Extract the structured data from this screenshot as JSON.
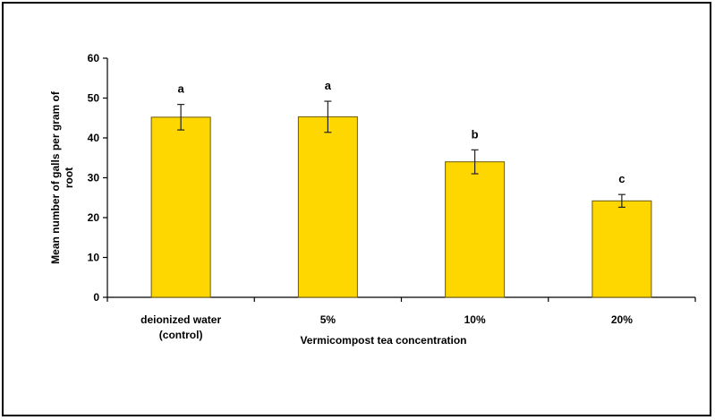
{
  "chart_data": {
    "type": "bar",
    "title": "",
    "xlabel": "Vermicompost tea concentration",
    "ylabel_lines": [
      "Mean number of galls per gram of",
      "root"
    ],
    "ylim": [
      0,
      60
    ],
    "yticks": [
      0,
      10,
      20,
      30,
      40,
      50,
      60
    ],
    "grid": false,
    "legend": "none",
    "bar_color": "#FFD700",
    "categories": [
      {
        "lines": [
          "deionized water",
          "(control)"
        ]
      },
      {
        "lines": [
          "5%"
        ]
      },
      {
        "lines": [
          "10%"
        ]
      },
      {
        "lines": [
          "20%"
        ]
      }
    ],
    "values": [
      45.2,
      45.3,
      34.0,
      24.2
    ],
    "errors": [
      3.2,
      3.9,
      3.0,
      1.6
    ],
    "significance_labels": [
      "a",
      "a",
      "b",
      "c"
    ]
  }
}
